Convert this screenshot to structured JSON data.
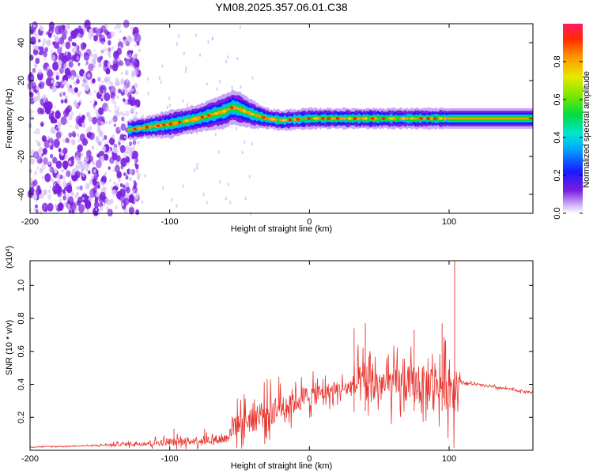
{
  "colors": {
    "snr_line": "#e8362f",
    "spectrogram_ridge": "#ff1a00",
    "spectrogram_scatter": "#7a1fe0",
    "frame": "#000000"
  },
  "chart_data": [
    {
      "type": "heatmap",
      "title": "YM08.2025.357.06.01.C38",
      "xlabel": "Height of straight line (km)",
      "ylabel": "Frequency (Hz)",
      "xlim": [
        -200,
        160
      ],
      "ylim": [
        -50,
        50
      ],
      "x_ticks": [
        -200,
        -100,
        0,
        100
      ],
      "y_ticks": [
        -40,
        -20,
        0,
        20,
        40
      ],
      "ridge": {
        "description_x": [
          -130,
          -120,
          -100,
          -80,
          -60,
          -55,
          -50,
          -40,
          -30,
          -20,
          0,
          20,
          50,
          80,
          100,
          160
        ],
        "center_frequency_hz": [
          -6,
          -5,
          -3,
          0,
          4,
          6,
          5,
          2,
          0,
          -1,
          0,
          0,
          0,
          0,
          0,
          0
        ],
        "half_width_hz": [
          3,
          3,
          4,
          4,
          5,
          5,
          5,
          4,
          3,
          3,
          3,
          3,
          3,
          3,
          3,
          3
        ]
      },
      "noise_region_x": [
        -200,
        -130
      ],
      "colorbar": {
        "label": "Normalized spectral amplitude",
        "range": [
          0,
          1
        ],
        "ticks": [
          "0.0",
          "0.2",
          "0.4",
          "0.6",
          "0.8"
        ],
        "tick_values": [
          0,
          0.2,
          0.4,
          0.6,
          0.8
        ]
      }
    },
    {
      "type": "line",
      "xlabel": "Height of straight line (km)",
      "ylabel": "SNR (10 * v/v)",
      "y_multiplier": "(x10",
      "y_multiplier_exp": "4",
      "y_multiplier_close": ")",
      "xlim": [
        -200,
        160
      ],
      "ylim": [
        0,
        1.15
      ],
      "x_ticks": [
        -200,
        -100,
        0,
        100
      ],
      "y_ticks": [
        0.2,
        0.4,
        0.6,
        0.8,
        1.0
      ],
      "y_tick_labels": [
        "0.2",
        "0.4",
        "0.6",
        "0.8",
        "1.0"
      ],
      "series": [
        {
          "name": "SNR",
          "envelope_x": [
            -200,
            -150,
            -125,
            -100,
            -60,
            -55,
            -40,
            -20,
            0,
            20,
            30,
            35,
            60,
            90,
            104,
            108,
            110,
            160
          ],
          "envelope_base": [
            0.02,
            0.03,
            0.04,
            0.05,
            0.07,
            0.15,
            0.2,
            0.27,
            0.33,
            0.37,
            0.38,
            0.4,
            0.4,
            0.4,
            0.4,
            0.42,
            0.41,
            0.35
          ],
          "envelope_noise": [
            0.005,
            0.01,
            0.03,
            0.05,
            0.06,
            0.15,
            0.2,
            0.2,
            0.15,
            0.1,
            0.12,
            0.25,
            0.25,
            0.25,
            0.4,
            0.03,
            0.02,
            0.015
          ]
        }
      ],
      "peaks": [
        {
          "x": 104,
          "y": 1.15
        },
        {
          "x": 95,
          "y": 0.77
        },
        {
          "x": 40,
          "y": 0.77
        },
        {
          "x": 32,
          "y": 0.74
        },
        {
          "x": 75,
          "y": 0.73
        },
        {
          "x": -97,
          "y": 0.13
        },
        {
          "x": -75,
          "y": 0.13
        }
      ]
    }
  ]
}
